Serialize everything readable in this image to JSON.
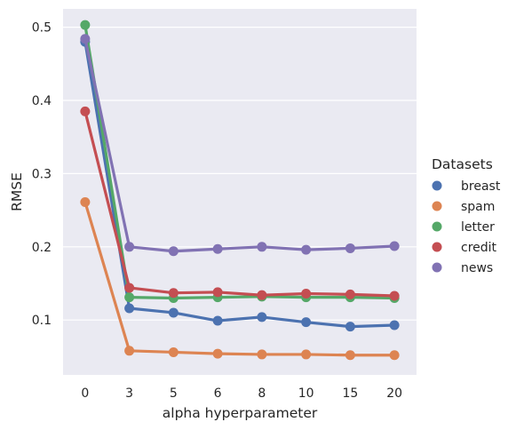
{
  "chart_data": {
    "type": "line",
    "xlabel": "alpha hyperparameter",
    "ylabel": "RMSE",
    "categories": [
      "0",
      "3",
      "5",
      "6",
      "8",
      "10",
      "15",
      "20"
    ],
    "ylim": [
      0.025,
      0.525
    ],
    "yticks": [
      "0.1",
      "0.2",
      "0.3",
      "0.4",
      "0.5"
    ],
    "ytick_values": [
      0.1,
      0.2,
      0.3,
      0.4,
      0.5
    ],
    "grid": true,
    "legend": {
      "title": "Datasets",
      "placement": "right"
    },
    "series": [
      {
        "name": "breast",
        "color": "#4c72b0",
        "values": [
          0.48,
          0.116,
          0.11,
          0.099,
          0.104,
          0.097,
          0.091,
          0.093
        ]
      },
      {
        "name": "spam",
        "color": "#dd8452",
        "values": [
          0.261,
          0.058,
          0.056,
          0.054,
          0.053,
          0.053,
          0.052,
          0.052
        ]
      },
      {
        "name": "letter",
        "color": "#55a868",
        "values": [
          0.503,
          0.131,
          0.13,
          0.131,
          0.132,
          0.131,
          0.131,
          0.13
        ]
      },
      {
        "name": "credit",
        "color": "#c44e52",
        "values": [
          0.385,
          0.144,
          0.137,
          0.138,
          0.134,
          0.136,
          0.135,
          0.133
        ]
      },
      {
        "name": "news",
        "color": "#8172b3",
        "values": [
          0.484,
          0.2,
          0.194,
          0.197,
          0.2,
          0.196,
          0.198,
          0.201
        ]
      }
    ]
  }
}
